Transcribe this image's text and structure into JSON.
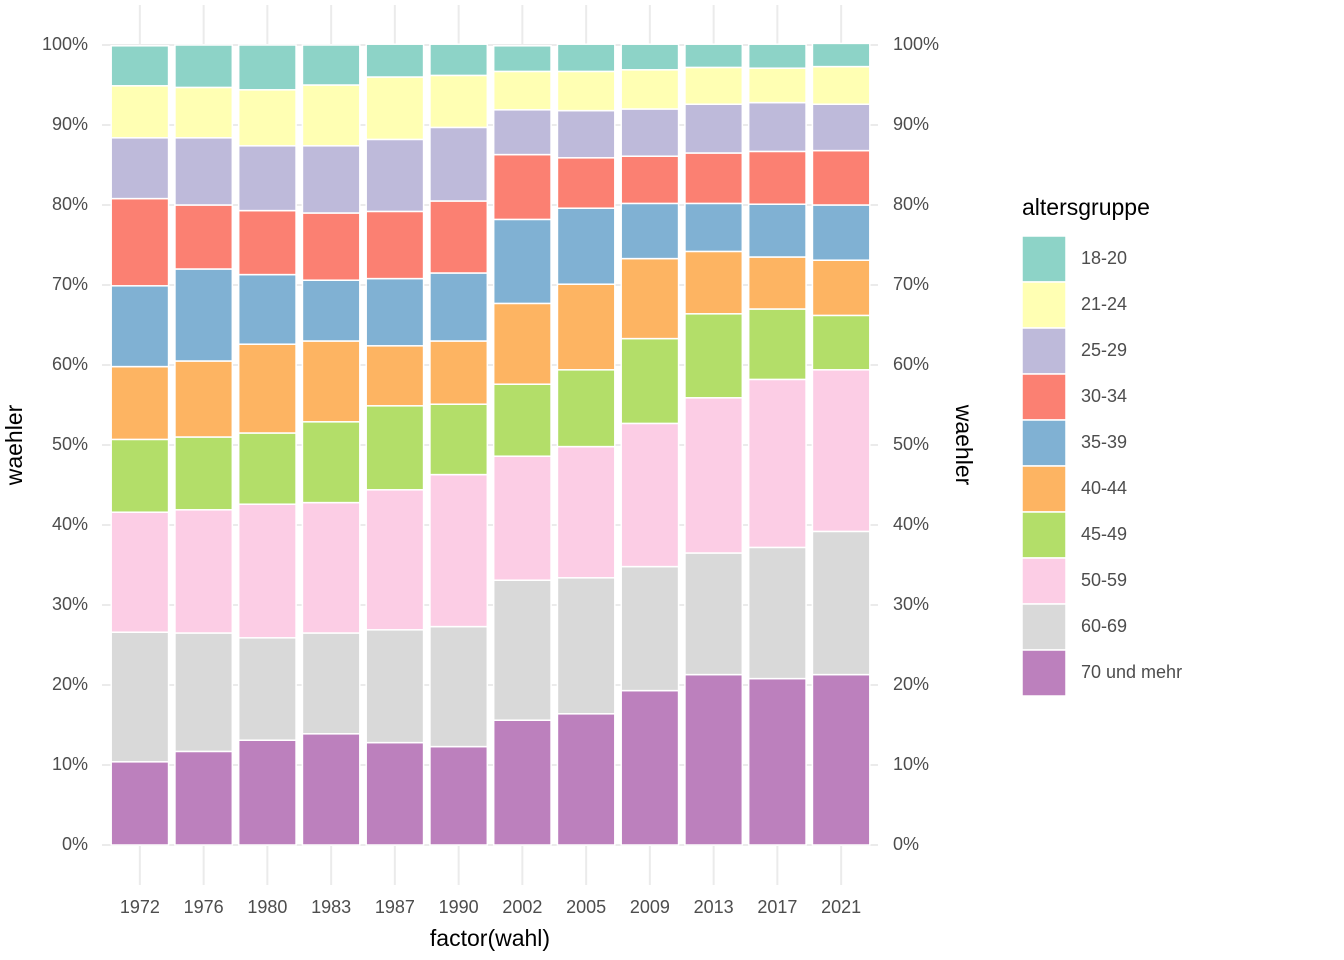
{
  "chart_data": {
    "type": "stacked_bar",
    "x_label": "factor(wahl)",
    "y_label": "waehler",
    "legend_title": "altersgruppe",
    "categories": [
      "1972",
      "1976",
      "1980",
      "1983",
      "1987",
      "1990",
      "2002",
      "2005",
      "2009",
      "2013",
      "2017",
      "2021"
    ],
    "series": [
      {
        "name": "18-20",
        "color": "#8dd3c7",
        "values": [
          5.0,
          5.3,
          5.6,
          5.0,
          4.1,
          3.9,
          3.2,
          3.4,
          3.2,
          2.9,
          3.0,
          2.9
        ]
      },
      {
        "name": "21-24",
        "color": "#ffffb3",
        "values": [
          6.5,
          6.3,
          7.0,
          7.6,
          7.8,
          6.5,
          4.8,
          4.9,
          4.9,
          4.6,
          4.3,
          4.7
        ]
      },
      {
        "name": "25-29",
        "color": "#bebada",
        "values": [
          7.6,
          8.4,
          8.1,
          8.4,
          9.0,
          9.2,
          5.6,
          5.9,
          5.9,
          6.1,
          6.1,
          5.8
        ]
      },
      {
        "name": "30-34",
        "color": "#fb8072",
        "values": [
          10.9,
          8.0,
          8.0,
          8.4,
          8.4,
          9.0,
          8.1,
          6.3,
          5.9,
          6.3,
          6.6,
          6.8
        ]
      },
      {
        "name": "35-39",
        "color": "#80b1d3",
        "values": [
          10.1,
          11.5,
          8.7,
          7.6,
          8.4,
          8.5,
          10.5,
          9.5,
          6.9,
          6.0,
          6.6,
          6.9
        ]
      },
      {
        "name": "40-44",
        "color": "#fdb462",
        "values": [
          9.1,
          9.5,
          11.1,
          10.1,
          7.5,
          7.9,
          10.1,
          10.7,
          10.0,
          7.8,
          6.5,
          6.9
        ]
      },
      {
        "name": "45-49",
        "color": "#b3de69",
        "values": [
          9.1,
          9.1,
          8.9,
          10.1,
          10.5,
          8.8,
          9.0,
          9.6,
          10.6,
          10.5,
          8.8,
          6.8
        ]
      },
      {
        "name": "50-59",
        "color": "#fccde5",
        "values": [
          15.0,
          15.4,
          16.7,
          16.3,
          17.5,
          19.0,
          15.5,
          16.4,
          17.9,
          19.4,
          21.0,
          20.2
        ]
      },
      {
        "name": "60-69",
        "color": "#d9d9d9",
        "values": [
          16.2,
          14.8,
          12.8,
          12.6,
          14.1,
          15.0,
          17.5,
          17.0,
          15.5,
          15.2,
          16.4,
          17.9
        ]
      },
      {
        "name": "70 und mehr",
        "color": "#bc80bd",
        "values": [
          10.4,
          11.7,
          13.1,
          13.9,
          12.8,
          12.3,
          15.6,
          16.4,
          19.3,
          21.3,
          20.8,
          21.3
        ]
      }
    ],
    "ylim": [
      0,
      100
    ],
    "yticks": [
      {
        "value": 0,
        "label": "0%"
      },
      {
        "value": 10,
        "label": "10%"
      },
      {
        "value": 20,
        "label": "20%"
      },
      {
        "value": 30,
        "label": "30%"
      },
      {
        "value": 40,
        "label": "40%"
      },
      {
        "value": 50,
        "label": "50%"
      },
      {
        "value": 60,
        "label": "60%"
      },
      {
        "value": 70,
        "label": "70%"
      },
      {
        "value": 80,
        "label": "80%"
      },
      {
        "value": 90,
        "label": "90%"
      },
      {
        "value": 100,
        "label": "100%"
      }
    ],
    "grid": true,
    "legend_position": "right"
  }
}
